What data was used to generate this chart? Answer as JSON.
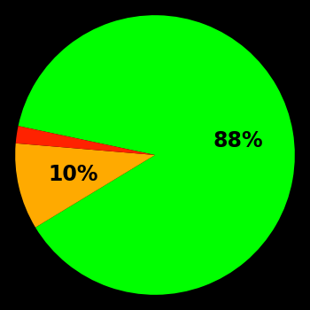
{
  "slices": [
    88,
    10,
    2
  ],
  "colors": [
    "#00ff00",
    "#ffaa00",
    "#ff2200"
  ],
  "labels": [
    "88%",
    "10%",
    ""
  ],
  "label_colors": [
    "#000000",
    "#000000",
    "#000000"
  ],
  "background_color": "#000000",
  "startangle": 168,
  "figsize": [
    3.5,
    3.5
  ],
  "dpi": 100,
  "label_fontsize": 17,
  "label_fontweight": "bold"
}
